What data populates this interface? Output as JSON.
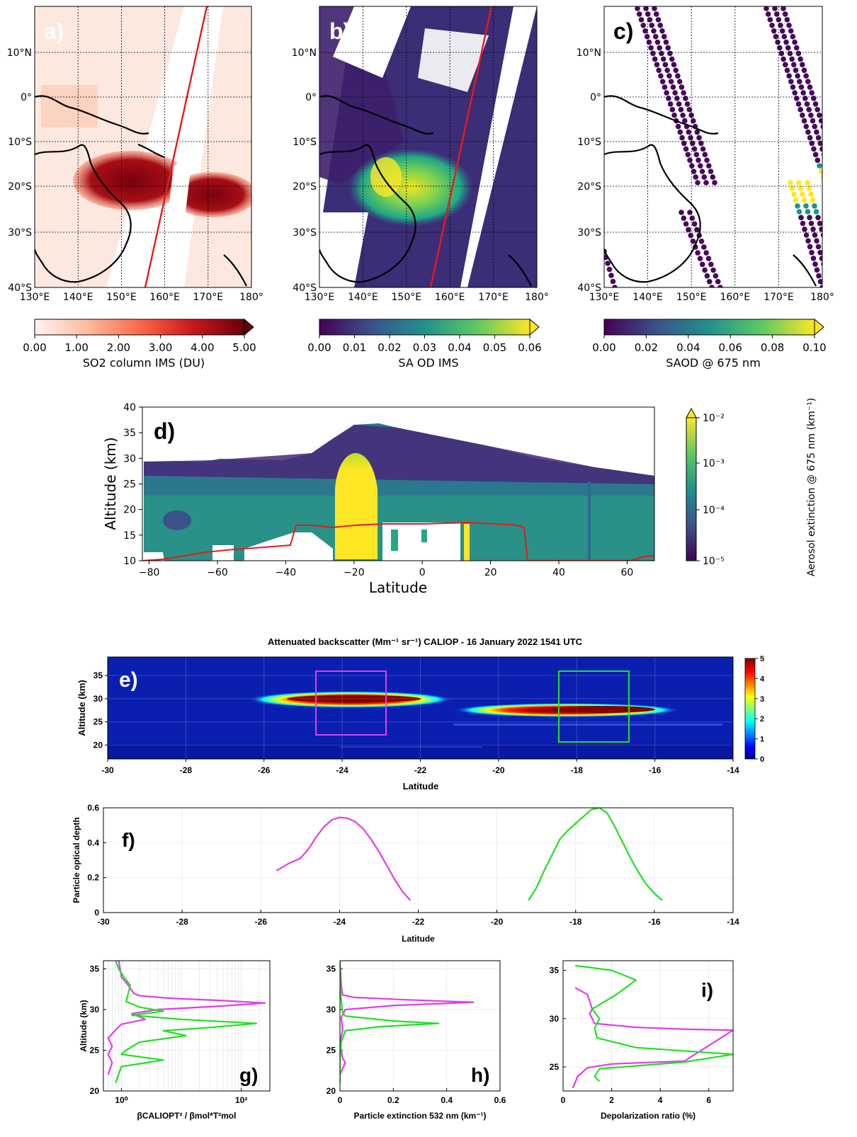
{
  "maps": {
    "lat_ticks": [
      "10°N",
      "0°",
      "10°S",
      "20°S",
      "30°S",
      "40°S"
    ],
    "lon_ticks": [
      "130°E",
      "140°E",
      "150°E",
      "160°E",
      "170°E",
      "180°"
    ],
    "panels": [
      {
        "letter": "a)",
        "colorbar_label": "SO2 column IMS (DU)",
        "cb_ticks": [
          "0.00",
          "1.00",
          "2.00",
          "3.00",
          "4.00",
          "5.00"
        ],
        "cmap": "reds"
      },
      {
        "letter": "b)",
        "colorbar_label": "SA OD IMS",
        "cb_ticks": [
          "0.00",
          "0.01",
          "0.02",
          "0.03",
          "0.04",
          "0.05",
          "0.06"
        ],
        "cmap": "viridis"
      },
      {
        "letter": "c)",
        "colorbar_label": "SAOD @ 675 nm",
        "cb_ticks": [
          "0.00",
          "0.02",
          "0.04",
          "0.06",
          "0.08",
          "0.10"
        ],
        "cmap": "viridis"
      }
    ],
    "track_color": "#e8191c"
  },
  "panel_d": {
    "letter": "d)",
    "ylabel": "Altitude (km)",
    "xlabel": "Latitude",
    "yticks": [
      "40",
      "35",
      "30",
      "25",
      "20",
      "15",
      "10"
    ],
    "xticks": [
      "−80",
      "−60",
      "−40",
      "−20",
      "0",
      "20",
      "40",
      "60"
    ],
    "cb_label": "Aerosol extinction @ 675 nm (km⁻¹)",
    "cb_ticks": [
      "10⁻²",
      "10⁻³",
      "10⁻⁴",
      "10⁻⁵"
    ],
    "tropopause_color": "#e8191c"
  },
  "panel_e": {
    "title": "Attenuated backscatter (Mm⁻¹ sr⁻¹) CALIOP - 16 January 2022 1541 UTC",
    "letter": "e)",
    "ylabel": "Altitude (km)",
    "xlabel": "Latitude",
    "yticks": [
      "35",
      "30",
      "25",
      "20"
    ],
    "xticks": [
      "-30",
      "-28",
      "-26",
      "-24",
      "-22",
      "-20",
      "-18",
      "-16",
      "-14"
    ],
    "cb_ticks": [
      "5",
      "4",
      "3",
      "2",
      "1",
      "0"
    ],
    "box_colors": [
      "#e23ce6",
      "#22e022"
    ]
  },
  "chart_data": [
    {
      "type": "line",
      "id": "f",
      "letter": "f)",
      "ylabel": "Particle optical depth",
      "xlabel": "Latitude",
      "xlim": [
        -30,
        -14
      ],
      "ylim": [
        0,
        0.6
      ],
      "xticks": [
        "-30",
        "-28",
        "-26",
        "-24",
        "-22",
        "-20",
        "-18",
        "-16",
        "-14"
      ],
      "yticks": [
        "0",
        "0.2",
        "0.4",
        "0.6"
      ],
      "series": [
        {
          "color": "#e23ce6",
          "x": [
            -25.6,
            -25.3,
            -25.0,
            -24.8,
            -24.6,
            -24.4,
            -24.2,
            -24.0,
            -23.8,
            -23.6,
            -23.4,
            -23.2,
            -23.0,
            -22.8,
            -22.6,
            -22.4,
            -22.2
          ],
          "y": [
            0.24,
            0.28,
            0.31,
            0.36,
            0.43,
            0.49,
            0.53,
            0.545,
            0.54,
            0.52,
            0.48,
            0.42,
            0.35,
            0.27,
            0.19,
            0.12,
            0.07
          ]
        },
        {
          "color": "#22e022",
          "x": [
            -19.2,
            -19.0,
            -18.8,
            -18.6,
            -18.4,
            -18.2,
            -18.0,
            -17.8,
            -17.6,
            -17.4,
            -17.2,
            -17.0,
            -16.8,
            -16.6,
            -16.4,
            -16.2,
            -16.0,
            -15.8
          ],
          "y": [
            0.07,
            0.14,
            0.24,
            0.33,
            0.42,
            0.47,
            0.51,
            0.55,
            0.59,
            0.6,
            0.57,
            0.49,
            0.4,
            0.31,
            0.23,
            0.16,
            0.11,
            0.07
          ]
        }
      ]
    },
    {
      "type": "line",
      "id": "g",
      "letter": "g)",
      "ylabel": "Altitude (km)",
      "xlabel": "βCALIOPT² / βmol*T²mol",
      "xscale": "log",
      "xlim": [
        0.5,
        300
      ],
      "ylim": [
        20,
        36
      ],
      "xticks": [
        "10⁰",
        "10²"
      ],
      "yticks": [
        "35",
        "30",
        "25",
        "20"
      ],
      "series": [
        {
          "color": "#e23ce6",
          "x": [
            0.9,
            1.0,
            1.3,
            1.6,
            2,
            6,
            50,
            250,
            40,
            4,
            1.5,
            2.5,
            1.0,
            0.8,
            0.6,
            0.7,
            0.6,
            0.7,
            0.6
          ],
          "y": [
            36,
            34,
            33,
            32,
            31.7,
            31.4,
            31.1,
            30.8,
            30.4,
            30.0,
            29.5,
            28.8,
            28.2,
            27.5,
            26.5,
            25.5,
            24.5,
            23.5,
            22
          ]
        },
        {
          "color": "#22e022",
          "x": [
            0.8,
            0.9,
            1.1,
            1.4,
            1.3,
            1.2,
            2,
            5,
            1.5,
            10,
            180,
            30,
            5,
            12,
            2,
            1.2,
            1.0,
            5,
            1.0,
            0.8
          ],
          "y": [
            36,
            35,
            34,
            33,
            32,
            31,
            30.3,
            29.8,
            29.3,
            28.8,
            28.3,
            27.8,
            27.4,
            26.8,
            26,
            25,
            24.5,
            23.8,
            23,
            21
          ]
        }
      ]
    },
    {
      "type": "line",
      "id": "h",
      "letter": "h)",
      "ylabel": "",
      "xlabel": "Particle extinction 532 nm (km⁻¹)",
      "xlim": [
        0,
        0.6
      ],
      "ylim": [
        20,
        36
      ],
      "xticks": [
        "0",
        "0.2",
        "0.4",
        "0.6"
      ],
      "yticks": [
        "35",
        "30",
        "25",
        "20"
      ],
      "series": [
        {
          "color": "#e23ce6",
          "x": [
            0,
            0.005,
            0.01,
            0.05,
            0.25,
            0.5,
            0.2,
            0.02,
            0.005,
            0.01,
            0.0,
            0.01,
            0.02,
            0.0
          ],
          "y": [
            36,
            33,
            31.8,
            31.5,
            31.2,
            30.9,
            30.5,
            30.0,
            29.0,
            27.5,
            26,
            24,
            23.5,
            22
          ]
        },
        {
          "color": "#22e022",
          "x": [
            0,
            0,
            0.005,
            0.01,
            0.02,
            0.2,
            0.37,
            0.15,
            0.02,
            0.005,
            0.0,
            0.0
          ],
          "y": [
            36,
            33,
            31,
            29.6,
            29.2,
            28.6,
            28.3,
            27.9,
            27.4,
            26,
            24,
            21
          ]
        }
      ]
    },
    {
      "type": "line",
      "id": "i",
      "letter": "i)",
      "ylabel": "",
      "xlabel": "Depolarization ratio (%)",
      "xlim": [
        0,
        7
      ],
      "ylim": [
        22.5,
        36
      ],
      "xticks": [
        "0",
        "2",
        "4",
        "6"
      ],
      "yticks": [
        "35",
        "30",
        "25"
      ],
      "series": [
        {
          "color": "#e23ce6",
          "x": [
            0.5,
            1.0,
            1.2,
            1.1,
            1.2,
            1.3,
            3,
            5,
            7,
            5,
            2,
            1.0,
            0.6,
            0.4
          ],
          "y": [
            33.2,
            32.5,
            31,
            30.5,
            30,
            29.5,
            29.1,
            28.9,
            28.8,
            25.6,
            25.3,
            24.9,
            24.0,
            22.8
          ]
        },
        {
          "color": "#22e022",
          "x": [
            0.5,
            2.0,
            3.0,
            2.2,
            1.2,
            1.5,
            1.3,
            1.4,
            3,
            7,
            5,
            1.5,
            1.3,
            1.5
          ],
          "y": [
            35.5,
            35,
            34,
            32.5,
            31,
            30,
            29,
            28,
            27,
            26.3,
            25.5,
            24.8,
            24,
            23.5
          ]
        }
      ]
    }
  ]
}
